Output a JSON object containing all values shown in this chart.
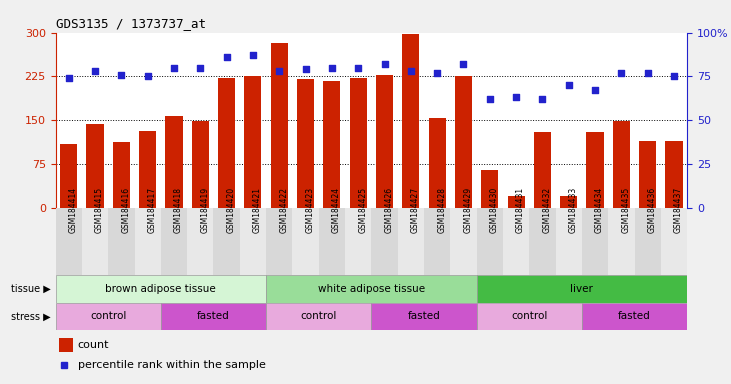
{
  "title": "GDS3135 / 1373737_at",
  "samples": [
    "GSM184414",
    "GSM184415",
    "GSM184416",
    "GSM184417",
    "GSM184418",
    "GSM184419",
    "GSM184420",
    "GSM184421",
    "GSM184422",
    "GSM184423",
    "GSM184424",
    "GSM184425",
    "GSM184426",
    "GSM184427",
    "GSM184428",
    "GSM184429",
    "GSM184430",
    "GSM184431",
    "GSM184432",
    "GSM184433",
    "GSM184434",
    "GSM184435",
    "GSM184436",
    "GSM184437"
  ],
  "counts": [
    110,
    143,
    112,
    132,
    157,
    148,
    222,
    226,
    283,
    221,
    218,
    222,
    227,
    297,
    154,
    225,
    65,
    20,
    130,
    20,
    130,
    148,
    115,
    115
  ],
  "percentiles": [
    74,
    78,
    76,
    75,
    80,
    80,
    86,
    87,
    78,
    79,
    80,
    80,
    82,
    78,
    77,
    82,
    62,
    63,
    62,
    70,
    67,
    77,
    77,
    75
  ],
  "tissue_groups": [
    {
      "label": "brown adipose tissue",
      "start": 0,
      "end": 8,
      "color": "#d5f5d5"
    },
    {
      "label": "white adipose tissue",
      "start": 8,
      "end": 16,
      "color": "#99dd99"
    },
    {
      "label": "liver",
      "start": 16,
      "end": 24,
      "color": "#44bb44"
    }
  ],
  "stress_groups": [
    {
      "label": "control",
      "start": 0,
      "end": 4,
      "color": "#e8aadd"
    },
    {
      "label": "fasted",
      "start": 4,
      "end": 8,
      "color": "#cc55cc"
    },
    {
      "label": "control",
      "start": 8,
      "end": 12,
      "color": "#e8aadd"
    },
    {
      "label": "fasted",
      "start": 12,
      "end": 16,
      "color": "#cc55cc"
    },
    {
      "label": "control",
      "start": 16,
      "end": 20,
      "color": "#e8aadd"
    },
    {
      "label": "fasted",
      "start": 20,
      "end": 24,
      "color": "#cc55cc"
    }
  ],
  "bar_color": "#cc2200",
  "dot_color": "#2222cc",
  "left_ylim": [
    0,
    300
  ],
  "right_ylim": [
    0,
    100
  ],
  "left_yticks": [
    0,
    75,
    150,
    225,
    300
  ],
  "right_yticks": [
    0,
    25,
    50,
    75,
    100
  ],
  "right_yticklabels": [
    "0",
    "25",
    "50",
    "75",
    "100%"
  ],
  "hline_values": [
    75,
    150,
    225
  ],
  "fig_bg": "#f0f0f0",
  "plot_bg": "#ffffff",
  "xtick_bg_even": "#d8d8d8",
  "xtick_bg_odd": "#e8e8e8"
}
